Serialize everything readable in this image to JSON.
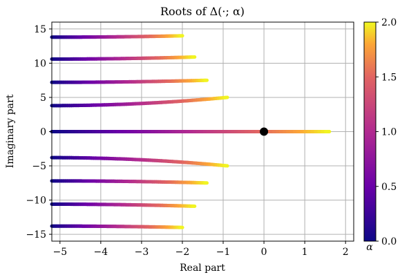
{
  "chart_data": {
    "type": "scatter",
    "title": "Roots of Δ(·; α)",
    "xlabel": "Real part",
    "ylabel": "Imaginary part",
    "xlim": [
      -5.2,
      2.2
    ],
    "ylim": [
      -16,
      16
    ],
    "xticks": [
      -5,
      -4,
      -3,
      -2,
      -1,
      0,
      1,
      2
    ],
    "yticks": [
      -15,
      -10,
      -5,
      0,
      5,
      10,
      15
    ],
    "xtick_labels": [
      "−5",
      "−4",
      "−3",
      "−2",
      "−1",
      "0",
      "1",
      "2"
    ],
    "ytick_labels": [
      "−15",
      "−10",
      "−5",
      "0",
      "5",
      "10",
      "15"
    ],
    "grid": true,
    "colormap": "plasma",
    "colorbar": {
      "label": "α",
      "range": [
        0.0,
        2.0
      ],
      "ticks": [
        0.0,
        0.5,
        1.0,
        1.5,
        2.0
      ],
      "tick_labels": [
        "0.0",
        "0.5",
        "1.0",
        "1.5",
        "2.0"
      ]
    },
    "branches": [
      {
        "start": [
          -5.2,
          13.8
        ],
        "end": [
          -2.0,
          14.0
        ]
      },
      {
        "start": [
          -5.2,
          10.6
        ],
        "end": [
          -1.7,
          10.9
        ]
      },
      {
        "start": [
          -5.2,
          7.2
        ],
        "end": [
          -1.4,
          7.5
        ]
      },
      {
        "start": [
          -5.2,
          3.8
        ],
        "end": [
          -0.9,
          5.0
        ]
      },
      {
        "start": [
          -5.2,
          0.0
        ],
        "end": [
          1.6,
          0.0
        ]
      },
      {
        "start": [
          -5.2,
          -3.8
        ],
        "end": [
          -0.9,
          -5.0
        ]
      },
      {
        "start": [
          -5.2,
          -7.2
        ],
        "end": [
          -1.4,
          -7.5
        ]
      },
      {
        "start": [
          -5.2,
          -10.6
        ],
        "end": [
          -1.7,
          -10.9
        ]
      },
      {
        "start": [
          -5.2,
          -13.8
        ],
        "end": [
          -2.0,
          -14.0
        ]
      }
    ],
    "marker": {
      "x": 0,
      "y": 0,
      "color": "#000000"
    }
  }
}
